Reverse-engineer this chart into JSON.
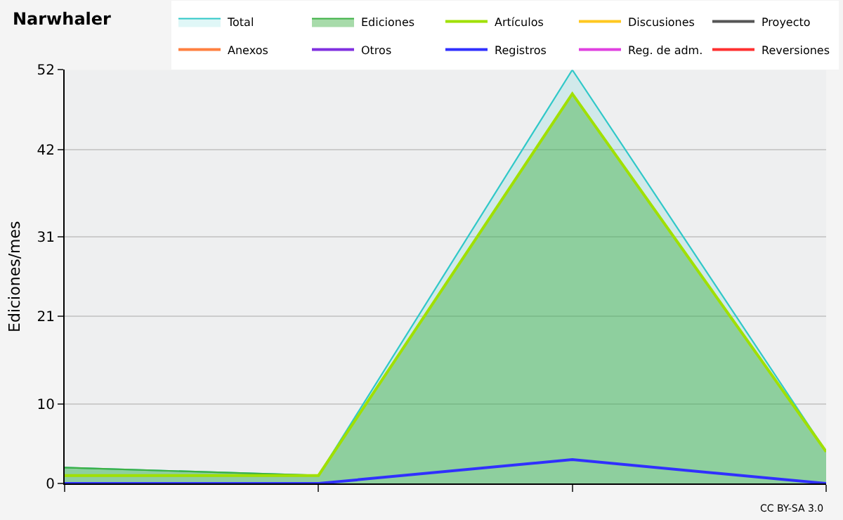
{
  "chart_data": {
    "type": "area",
    "title": "Narwhaler",
    "ylabel": "Ediciones/mes",
    "categories": [
      null,
      null,
      null,
      null
    ],
    "ylim": [
      0,
      52
    ],
    "yticks": [
      0,
      10,
      21,
      31,
      42,
      52
    ],
    "grid": "y",
    "legend": "top right",
    "series": [
      {
        "name": "Total",
        "color": "#30c8c8",
        "values": [
          2,
          1,
          52,
          4
        ]
      },
      {
        "name": "Ediciones",
        "color": "#3cb043",
        "values": [
          2,
          1,
          49,
          4
        ]
      },
      {
        "name": "Artículos",
        "type": "line",
        "color": "#a0e000",
        "values": [
          1,
          1,
          49,
          4
        ]
      },
      {
        "name": "Discusiones",
        "type": "line",
        "color": "#ffc820",
        "values": [
          null,
          null,
          null,
          null
        ]
      },
      {
        "name": "Proyecto",
        "type": "line",
        "color": "#555555",
        "values": [
          null,
          null,
          null,
          null
        ]
      },
      {
        "name": "Anexos",
        "type": "line",
        "color": "#ff8040",
        "values": [
          null,
          null,
          null,
          null
        ]
      },
      {
        "name": "Otros",
        "type": "line",
        "color": "#8030e0",
        "values": [
          null,
          null,
          null,
          null
        ]
      },
      {
        "name": "Registros",
        "type": "line",
        "color": "#3030ff",
        "values": [
          0,
          0,
          3,
          0
        ]
      },
      {
        "name": "Reg. de adm.",
        "type": "line",
        "color": "#e040e0",
        "values": [
          null,
          null,
          null,
          null
        ]
      },
      {
        "name": "Reversiones",
        "type": "line",
        "color": "#ff3030",
        "values": [
          null,
          null,
          null,
          null
        ]
      }
    ],
    "annotations": [
      "CC BY-SA 3.0"
    ]
  }
}
